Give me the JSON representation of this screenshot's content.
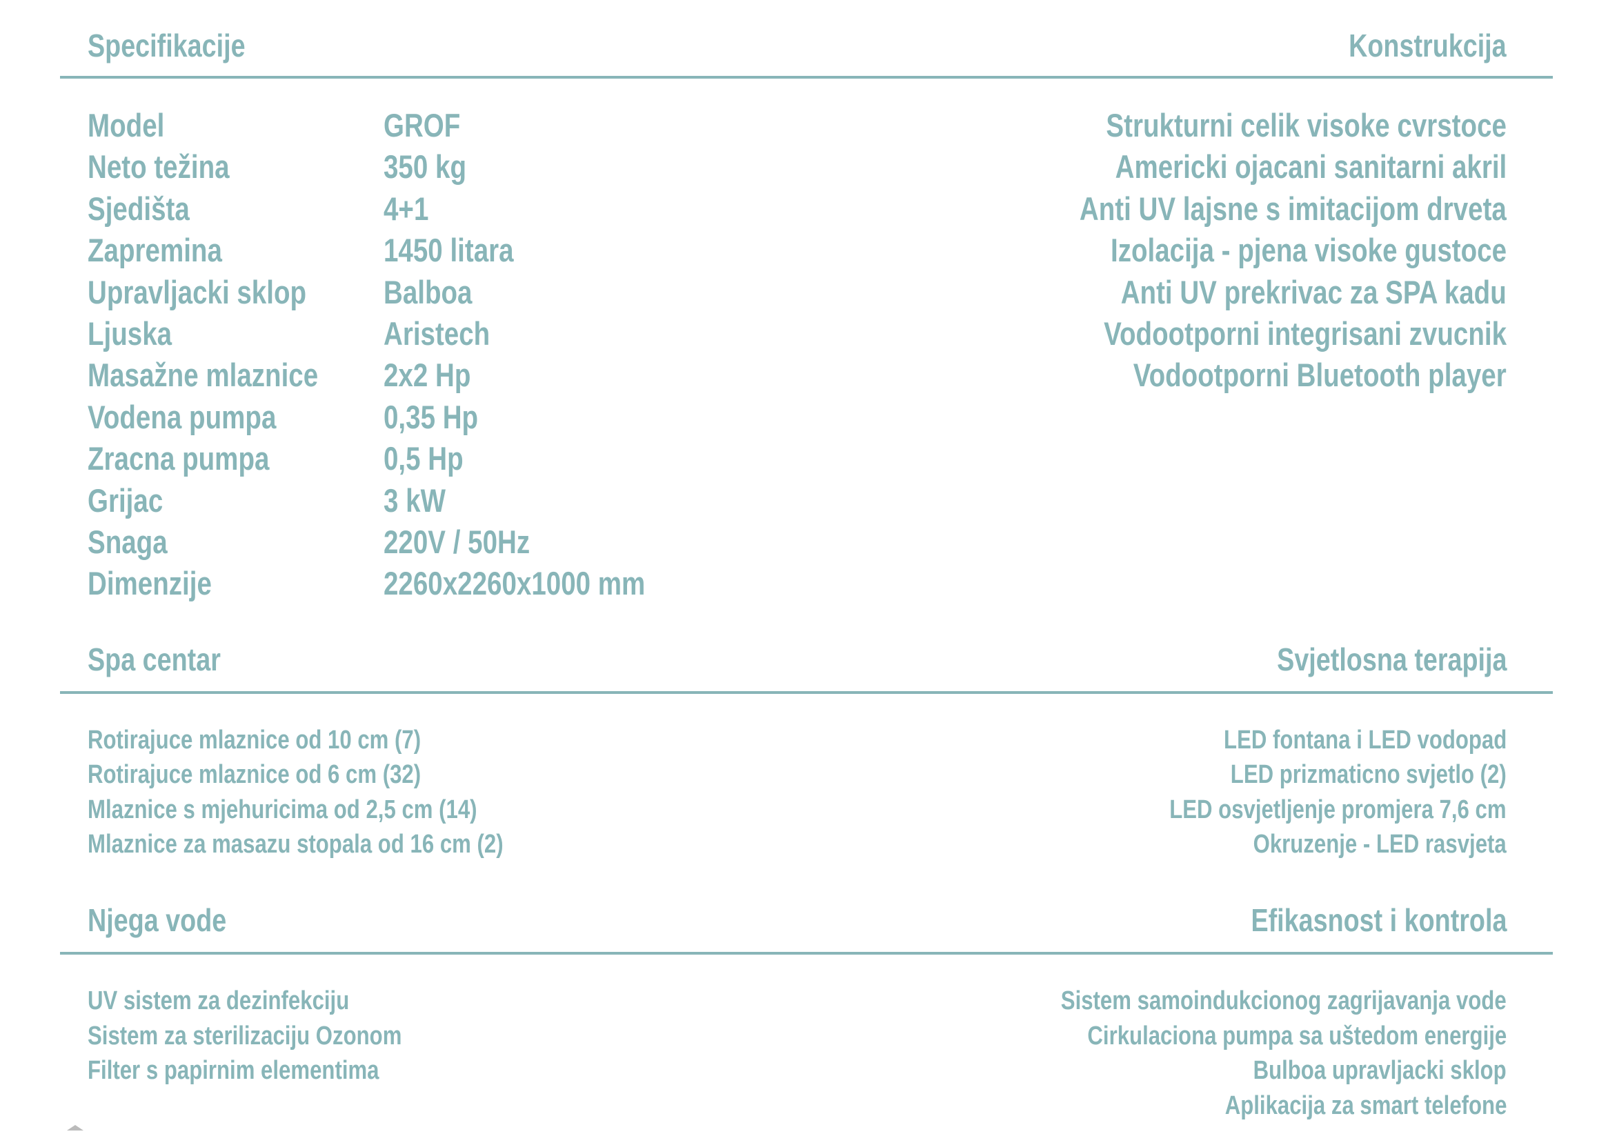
{
  "sections": {
    "specs": {
      "title": "Specifikacije",
      "rows": [
        {
          "label": "Model",
          "value": "GROF"
        },
        {
          "label": "Neto težina",
          "value": "350 kg"
        },
        {
          "label": "Sjedišta",
          "value": "4+1"
        },
        {
          "label": "Zapremina",
          "value": "1450 litara"
        },
        {
          "label": "Upravljacki sklop",
          "value": "Balboa"
        },
        {
          "label": "Ljuska",
          "value": "Aristech"
        },
        {
          "label": "Masažne mlaznice",
          "value": "2x2 Hp"
        },
        {
          "label": "Vodena pumpa",
          "value": "0,35 Hp"
        },
        {
          "label": "Zracna pumpa",
          "value": "0,5 Hp"
        },
        {
          "label": "Grijac",
          "value": "3 kW"
        },
        {
          "label": "Snaga",
          "value": "220V / 50Hz"
        },
        {
          "label": "Dimenzije",
          "value": "2260x2260x1000 mm"
        }
      ]
    },
    "construction": {
      "title": "Konstrukcija",
      "items": [
        "Strukturni celik visoke cvrstoce",
        "Americki ojacani sanitarni akril",
        "Anti UV lajsne s imitacijom drveta",
        "Izolacija - pjena visoke gustoce",
        "Anti UV prekrivac za SPA kadu",
        "Vodootporni integrisani zvucnik",
        "Vodootporni Bluetooth player"
      ]
    },
    "spa": {
      "title": "Spa centar",
      "items": [
        "Rotirajuce mlaznice od 10 cm (7)",
        "Rotirajuce mlaznice od 6 cm (32)",
        "Mlaznice s mjehuricima od 2,5 cm (14)",
        "Mlaznice za masazu stopala od 16 cm (2)"
      ]
    },
    "light": {
      "title": "Svjetlosna terapija",
      "items": [
        "LED fontana i LED vodopad",
        "LED prizmaticno svjetlo (2)",
        "LED osvjetljenje promjera 7,6 cm",
        "Okruzenje - LED rasvjeta"
      ]
    },
    "water": {
      "title": "Njega vode",
      "items": [
        "UV sistem za dezinfekciju",
        "Sistem za sterilizaciju Ozonom",
        "Filter s papirnim elementima"
      ]
    },
    "efficiency": {
      "title": "Efikasnost i kontrola",
      "items": [
        "Sistem samoindukcionog zagrijavanja vode",
        "Cirkulaciona pumpa sa uštedom energije",
        "Bulboa upravljacki sklop",
        "Aplikacija za smart telefone"
      ]
    }
  },
  "colors": {
    "accent": "#88b5b8"
  }
}
